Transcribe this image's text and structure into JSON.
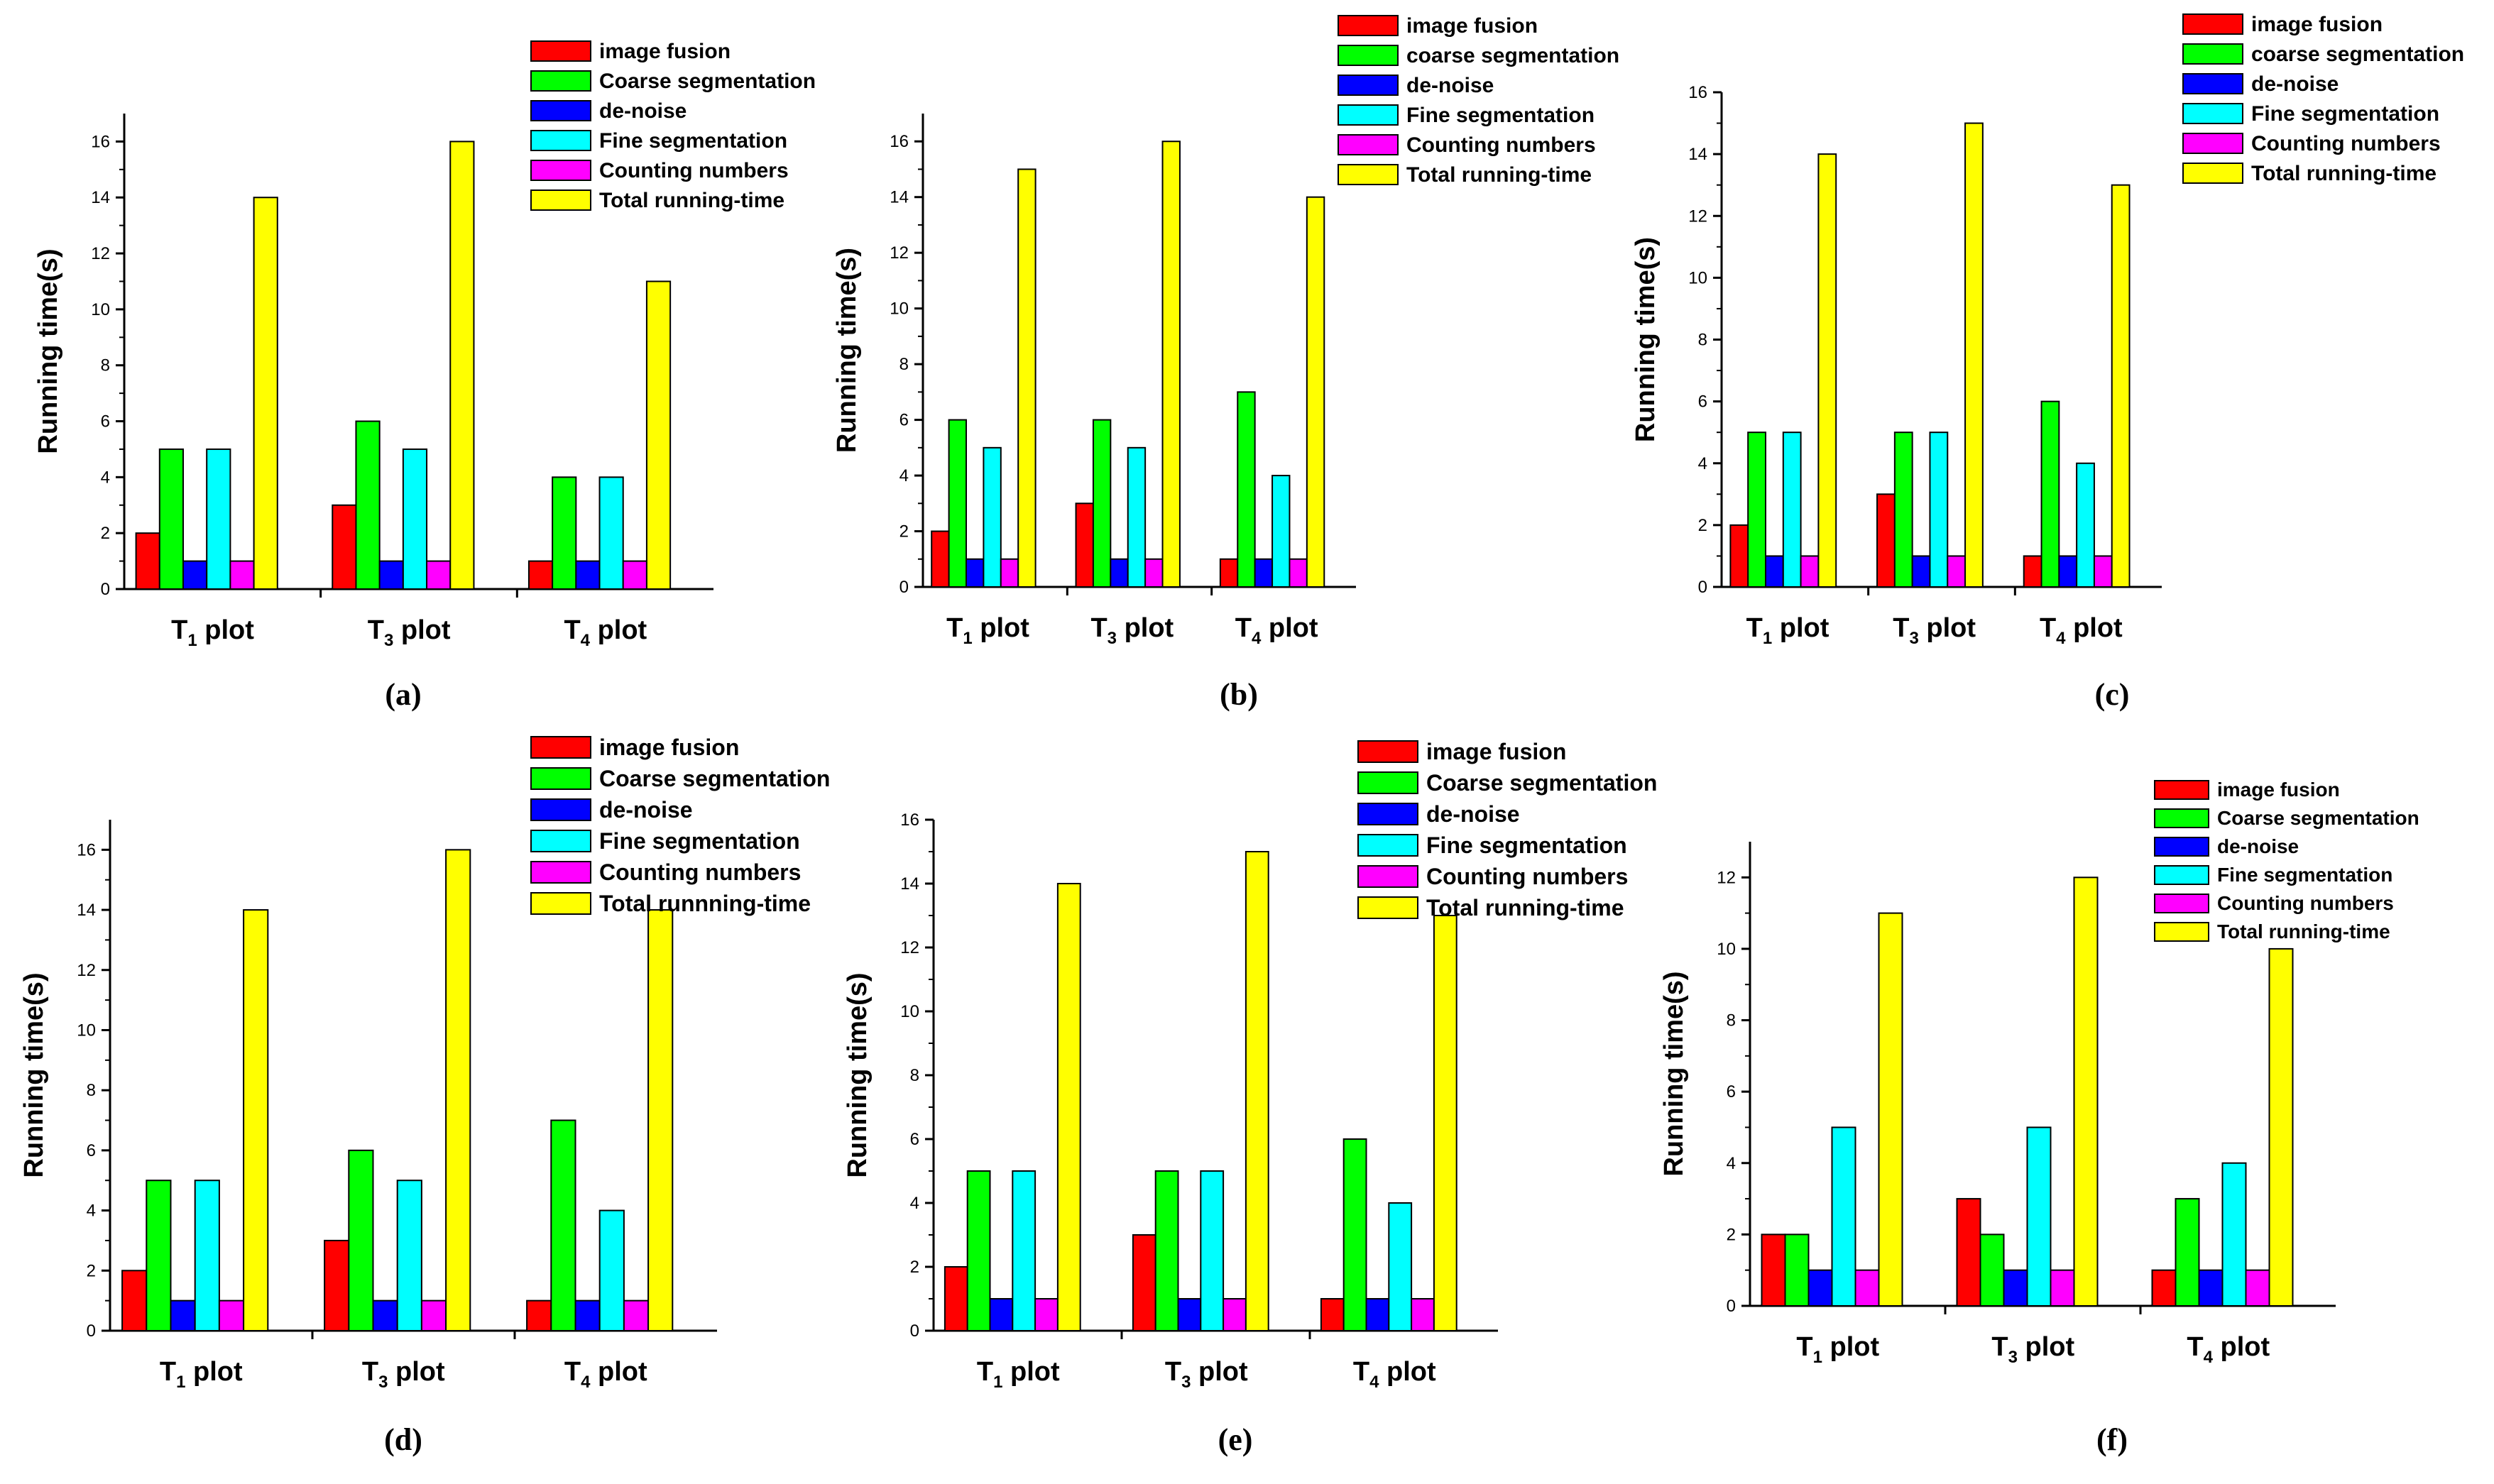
{
  "colors": {
    "image_fusion": "#ff0000",
    "coarse_segmentation": "#00ff00",
    "de_noise": "#0000ff",
    "fine_segmentation": "#00ffff",
    "counting_numbers": "#ff00ff",
    "total_running_time": "#ffff00"
  },
  "chart_data": [
    {
      "type": "bar",
      "panel_label": "(a)",
      "ylabel": "Running time(s)",
      "ylim": [
        0,
        17
      ],
      "yticks": [
        0,
        2,
        4,
        6,
        8,
        10,
        12,
        14,
        16
      ],
      "categories": [
        {
          "main": "T",
          "sub": "1",
          "suffix": "plot"
        },
        {
          "main": "T",
          "sub": "3",
          "suffix": "plot"
        },
        {
          "main": "T",
          "sub": "4",
          "suffix": "plot"
        }
      ],
      "legend_position": "top-right",
      "series": [
        {
          "name": "image fusion",
          "values": [
            2,
            3,
            1
          ]
        },
        {
          "name": "Coarse segmentation",
          "values": [
            5,
            6,
            4
          ]
        },
        {
          "name": "de-noise",
          "values": [
            1,
            1,
            1
          ]
        },
        {
          "name": "Fine segmentation",
          "values": [
            5,
            5,
            4
          ]
        },
        {
          "name": "Counting numbers",
          "values": [
            1,
            1,
            1
          ]
        },
        {
          "name": "Total running-time",
          "values": [
            14,
            16,
            11
          ]
        }
      ]
    },
    {
      "type": "bar",
      "panel_label": "(b)",
      "ylabel": "Running time(s)",
      "ylim": [
        0,
        17
      ],
      "yticks": [
        0,
        2,
        4,
        6,
        8,
        10,
        12,
        14,
        16
      ],
      "categories": [
        {
          "main": "T",
          "sub": "1",
          "suffix": "plot"
        },
        {
          "main": "T",
          "sub": "3",
          "suffix": "plot"
        },
        {
          "main": "T",
          "sub": "4",
          "suffix": "plot"
        }
      ],
      "legend_position": "top-right",
      "series": [
        {
          "name": "image fusion",
          "values": [
            2,
            3,
            1
          ]
        },
        {
          "name": "coarse segmentation",
          "values": [
            6,
            6,
            7
          ]
        },
        {
          "name": "de-noise",
          "values": [
            1,
            1,
            1
          ]
        },
        {
          "name": "Fine segmentation",
          "values": [
            5,
            5,
            4
          ]
        },
        {
          "name": "Counting numbers",
          "values": [
            1,
            1,
            1
          ]
        },
        {
          "name": "Total running-time",
          "values": [
            15,
            16,
            14
          ]
        }
      ]
    },
    {
      "type": "bar",
      "panel_label": "(c)",
      "ylabel": "Running time(s)",
      "ylim": [
        0,
        16
      ],
      "yticks": [
        0,
        2,
        4,
        6,
        8,
        10,
        12,
        14,
        16
      ],
      "categories": [
        {
          "main": "T",
          "sub": "1",
          "suffix": "plot"
        },
        {
          "main": "T",
          "sub": "3",
          "suffix": "plot"
        },
        {
          "main": "T",
          "sub": "4",
          "suffix": "plot"
        }
      ],
      "legend_position": "top-right",
      "series": [
        {
          "name": "image fusion",
          "values": [
            2,
            3,
            1
          ]
        },
        {
          "name": "coarse segmentation",
          "values": [
            5,
            5,
            6
          ]
        },
        {
          "name": "de-noise",
          "values": [
            1,
            1,
            1
          ]
        },
        {
          "name": "Fine segmentation",
          "values": [
            5,
            5,
            4
          ]
        },
        {
          "name": "Counting numbers",
          "values": [
            1,
            1,
            1
          ]
        },
        {
          "name": "Total running-time",
          "values": [
            14,
            15,
            13
          ]
        }
      ]
    },
    {
      "type": "bar",
      "panel_label": "(d)",
      "ylabel": "Running time(s)",
      "ylim": [
        0,
        17
      ],
      "yticks": [
        0,
        2,
        4,
        6,
        8,
        10,
        12,
        14,
        16
      ],
      "categories": [
        {
          "main": "T",
          "sub": "1",
          "suffix": "plot"
        },
        {
          "main": "T",
          "sub": "3",
          "suffix": "plot"
        },
        {
          "main": "T",
          "sub": "4",
          "suffix": "plot"
        }
      ],
      "legend_position": "top-right",
      "series": [
        {
          "name": "image fusion",
          "values": [
            2,
            3,
            1
          ]
        },
        {
          "name": "Coarse segmentation",
          "values": [
            5,
            6,
            7
          ]
        },
        {
          "name": "de-noise",
          "values": [
            1,
            1,
            1
          ]
        },
        {
          "name": "Fine segmentation",
          "values": [
            5,
            5,
            4
          ]
        },
        {
          "name": "Counting numbers",
          "values": [
            1,
            1,
            1
          ]
        },
        {
          "name": "Total runnning-time",
          "values": [
            14,
            16,
            14
          ]
        }
      ]
    },
    {
      "type": "bar",
      "panel_label": "(e)",
      "ylabel": "Running time(s)",
      "ylim": [
        0,
        16
      ],
      "yticks": [
        0,
        2,
        4,
        6,
        8,
        10,
        12,
        14,
        16
      ],
      "categories": [
        {
          "main": "T",
          "sub": "1",
          "suffix": "plot"
        },
        {
          "main": "T",
          "sub": "3",
          "suffix": "plot"
        },
        {
          "main": "T",
          "sub": "4",
          "suffix": "plot"
        }
      ],
      "legend_position": "top-right",
      "series": [
        {
          "name": "image fusion",
          "values": [
            2,
            3,
            1
          ]
        },
        {
          "name": "Coarse segmentation",
          "values": [
            5,
            5,
            6
          ]
        },
        {
          "name": "de-noise",
          "values": [
            1,
            1,
            1
          ]
        },
        {
          "name": "Fine segmentation",
          "values": [
            5,
            5,
            4
          ]
        },
        {
          "name": "Counting numbers",
          "values": [
            1,
            1,
            1
          ]
        },
        {
          "name": "Total running-time",
          "values": [
            14,
            15,
            13
          ]
        }
      ]
    },
    {
      "type": "bar",
      "panel_label": "(f)",
      "ylabel": "Running time(s)",
      "ylim": [
        0,
        13
      ],
      "yticks": [
        0,
        2,
        4,
        6,
        8,
        10,
        12
      ],
      "categories": [
        {
          "main": "T",
          "sub": "1",
          "suffix": "plot"
        },
        {
          "main": "T",
          "sub": "3",
          "suffix": "plot"
        },
        {
          "main": "T",
          "sub": "4",
          "suffix": "plot"
        }
      ],
      "legend_position": "top-right",
      "series": [
        {
          "name": "image fusion",
          "values": [
            2,
            3,
            1
          ]
        },
        {
          "name": "Coarse segmentation",
          "values": [
            2,
            2,
            3
          ]
        },
        {
          "name": "de-noise",
          "values": [
            1,
            1,
            1
          ]
        },
        {
          "name": "Fine segmentation",
          "values": [
            5,
            5,
            4
          ]
        },
        {
          "name": "Counting numbers",
          "values": [
            1,
            1,
            1
          ]
        },
        {
          "name": "Total running-time",
          "values": [
            11,
            12,
            10
          ]
        }
      ]
    }
  ]
}
